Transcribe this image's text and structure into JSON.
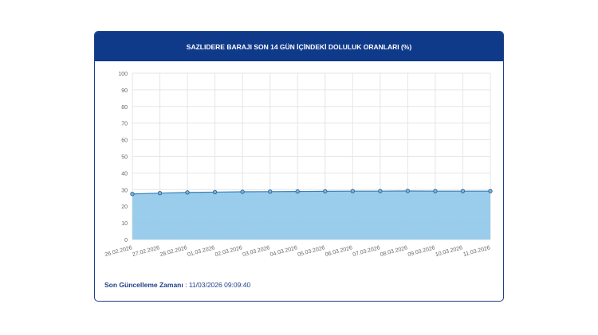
{
  "chart_data": {
    "type": "area",
    "title": "SAZLIDERE BARAJI SON 14 GÜN İÇİNDEKİ DOLULUK ORANLARI (%)",
    "xlabel": "",
    "ylabel": "",
    "ylim": [
      0,
      100
    ],
    "yticks": [
      "0",
      "10",
      "20",
      "30",
      "40",
      "50",
      "60",
      "70",
      "80",
      "90",
      "100"
    ],
    "categories": [
      "26.02.2026",
      "27.02.2026",
      "28.02.2026",
      "01.03.2026",
      "02.03.2026",
      "03.03.2026",
      "04.03.2026",
      "05.03.2026",
      "06.03.2026",
      "07.03.2026",
      "08.03.2026",
      "09.03.2026",
      "10.03.2026",
      "11.03.2026"
    ],
    "values": [
      27.4,
      27.9,
      28.3,
      28.5,
      28.7,
      28.8,
      28.9,
      29.0,
      29.1,
      29.1,
      29.2,
      29.1,
      29.1,
      29.1
    ],
    "grid": true,
    "colors": {
      "fill": "#8fc8ea",
      "line": "#3a7fb5",
      "header": "#0f3a8a"
    }
  },
  "footer": {
    "label": "Son Güncelleme Zamanı",
    "value": ": 11/03/2026 09:09:40"
  }
}
